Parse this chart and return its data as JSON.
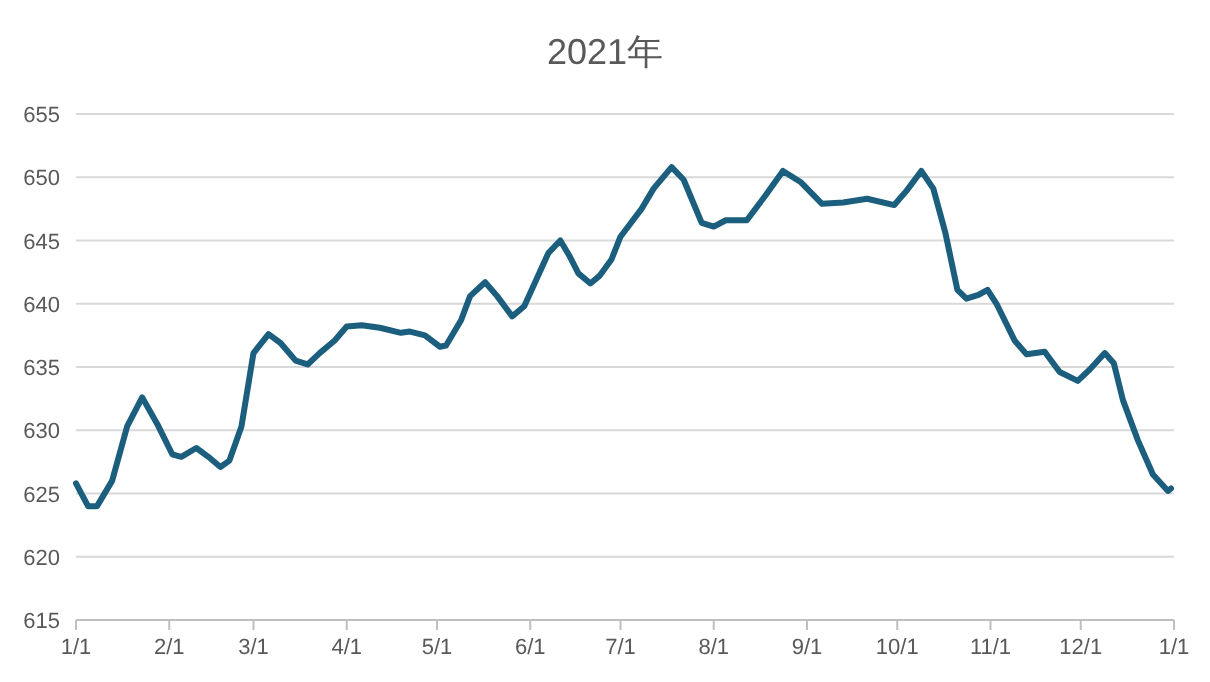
{
  "chart_data": {
    "type": "line",
    "title": "2021年",
    "x": [
      "2021-01-01",
      "2021-01-05",
      "2021-01-08",
      "2021-01-13",
      "2021-01-18",
      "2021-01-23",
      "2021-01-28",
      "2021-02-02",
      "2021-02-05",
      "2021-02-10",
      "2021-02-14",
      "2021-02-18",
      "2021-02-21",
      "2021-02-25",
      "2021-03-01",
      "2021-03-06",
      "2021-03-10",
      "2021-03-15",
      "2021-03-19",
      "2021-03-23",
      "2021-03-28",
      "2021-04-01",
      "2021-04-06",
      "2021-04-12",
      "2021-04-19",
      "2021-04-22",
      "2021-04-27",
      "2021-05-02",
      "2021-05-04",
      "2021-05-09",
      "2021-05-12",
      "2021-05-17",
      "2021-05-21",
      "2021-05-26",
      "2021-05-30",
      "2021-06-03",
      "2021-06-07",
      "2021-06-11",
      "2021-06-14",
      "2021-06-17",
      "2021-06-21",
      "2021-06-24",
      "2021-06-28",
      "2021-07-01",
      "2021-07-08",
      "2021-07-12",
      "2021-07-18",
      "2021-07-22",
      "2021-07-28",
      "2021-08-01",
      "2021-08-05",
      "2021-08-12",
      "2021-08-18",
      "2021-08-24",
      "2021-08-30",
      "2021-09-06",
      "2021-09-13",
      "2021-09-21",
      "2021-09-30",
      "2021-10-04",
      "2021-10-09",
      "2021-10-13",
      "2021-10-17",
      "2021-10-21",
      "2021-10-24",
      "2021-10-28",
      "2021-10-31",
      "2021-11-03",
      "2021-11-09",
      "2021-11-13",
      "2021-11-19",
      "2021-11-24",
      "2021-11-30",
      "2021-12-04",
      "2021-12-09",
      "2021-12-12",
      "2021-12-15",
      "2021-12-20",
      "2021-12-25",
      "2021-12-30",
      "2021-12-31"
    ],
    "series": [
      {
        "color": "#1b5e7e",
        "values": [
          625.8,
          624.0,
          624.0,
          626.0,
          630.3,
          632.6,
          630.5,
          628.1,
          627.9,
          628.6,
          627.9,
          627.1,
          627.6,
          630.3,
          636.1,
          637.6,
          636.9,
          635.5,
          635.2,
          636.1,
          637.1,
          638.2,
          638.3,
          638.1,
          637.7,
          637.8,
          637.5,
          636.6,
          636.7,
          638.7,
          640.6,
          641.7,
          640.6,
          639.0,
          639.8,
          641.9,
          644.0,
          645.0,
          643.8,
          642.4,
          641.6,
          642.2,
          643.5,
          645.3,
          647.5,
          649.1,
          650.8,
          649.8,
          646.4,
          646.1,
          646.6,
          646.6,
          648.5,
          650.5,
          649.6,
          647.9,
          648.0,
          648.3,
          647.8,
          648.9,
          650.5,
          649.1,
          645.6,
          641.1,
          640.4,
          640.7,
          641.1,
          640.0,
          637.1,
          636.0,
          636.2,
          634.6,
          633.9,
          634.8,
          636.1,
          635.3,
          632.4,
          629.2,
          626.5,
          625.2,
          625.4
        ]
      }
    ],
    "xlim": [
      "2021-01-01",
      "2022-01-01"
    ],
    "xticks": [
      {
        "value": "2021-01-01",
        "label": "1/1"
      },
      {
        "value": "2021-02-01",
        "label": "2/1"
      },
      {
        "value": "2021-03-01",
        "label": "3/1"
      },
      {
        "value": "2021-04-01",
        "label": "4/1"
      },
      {
        "value": "2021-05-01",
        "label": "5/1"
      },
      {
        "value": "2021-06-01",
        "label": "6/1"
      },
      {
        "value": "2021-07-01",
        "label": "7/1"
      },
      {
        "value": "2021-08-01",
        "label": "8/1"
      },
      {
        "value": "2021-09-01",
        "label": "9/1"
      },
      {
        "value": "2021-10-01",
        "label": "10/1"
      },
      {
        "value": "2021-11-01",
        "label": "11/1"
      },
      {
        "value": "2021-12-01",
        "label": "12/1"
      },
      {
        "value": "2022-01-01",
        "label": "1/1"
      }
    ],
    "ylim": [
      615,
      655
    ],
    "yticks": [
      615,
      620,
      625,
      630,
      635,
      640,
      645,
      650,
      655
    ],
    "grid": "y",
    "marker": "none",
    "line_style": "solid"
  }
}
